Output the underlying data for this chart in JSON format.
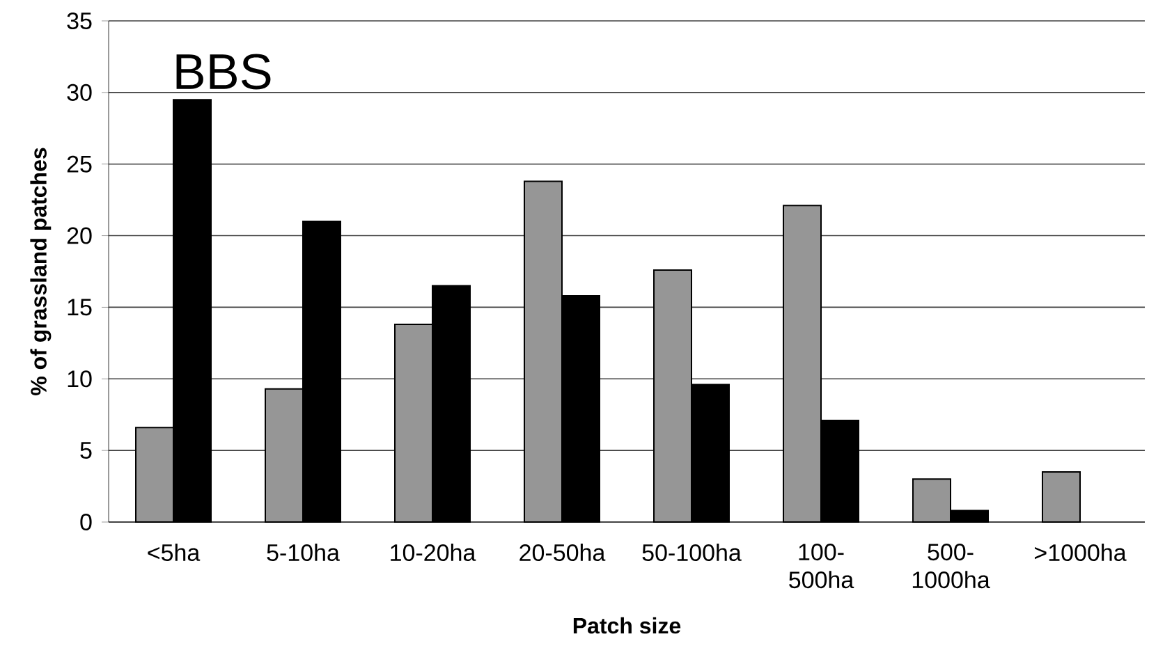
{
  "chart_data": {
    "type": "bar",
    "xlabel": "Patch size",
    "ylabel": "% of grassland patches",
    "categories": [
      "<5ha",
      "5-10ha",
      "10-20ha",
      "20-50ha",
      "50-100ha",
      "100-500ha",
      "500-1000ha",
      ">1000ha"
    ],
    "series": [
      {
        "color": "#969696",
        "values": [
          6.6,
          9.3,
          13.8,
          23.8,
          17.6,
          22.1,
          3.0,
          3.5
        ]
      },
      {
        "color": "#000000",
        "values": [
          29.5,
          21.0,
          16.5,
          15.8,
          9.6,
          7.1,
          0.8,
          null
        ]
      }
    ],
    "ylim": [
      0,
      35
    ],
    "yticks": [
      0,
      5,
      10,
      15,
      20,
      25,
      30,
      35
    ],
    "grid": "y",
    "annotations": [
      "BBS"
    ]
  }
}
